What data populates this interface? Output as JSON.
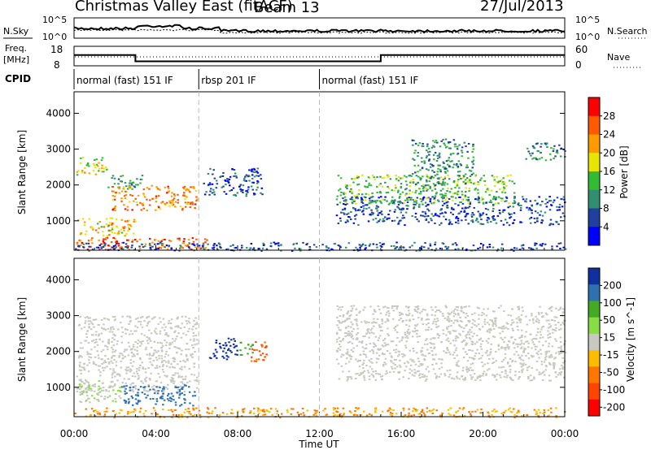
{
  "header": {
    "title": "Christmas Valley East (fitACF)",
    "beam": "Beam 13",
    "date": "27/Jul/2013"
  },
  "noise_panel": {
    "left_label": "N.Sky",
    "right_label": "N.Search",
    "left_ticks": [
      "10^5",
      "10^0"
    ],
    "right_ticks": [
      "10^5",
      "10^0"
    ]
  },
  "freq_panel": {
    "left_label_line1": "Freq.",
    "left_label_line2": "[MHz]",
    "right_label": "Nave",
    "left_ticks": [
      "18",
      "8"
    ],
    "right_ticks": [
      "60",
      "0"
    ]
  },
  "cpid": {
    "label": "CPID",
    "segments": [
      {
        "name": "normal (fast) 151 IF",
        "start_hour": 0,
        "end_hour": 6.1
      },
      {
        "name": "rbsp 201 IF",
        "start_hour": 6.1,
        "end_hour": 12.0
      },
      {
        "name": "normal (fast) 151 IF",
        "start_hour": 12.0,
        "end_hour": 24
      }
    ]
  },
  "power_panel": {
    "ylabel": "Slant Range [km]",
    "yticks": [
      "4000",
      "3000",
      "2000",
      "1000"
    ],
    "colorbar_label": "Power [dB]",
    "colorbar_ticks": [
      "28",
      "24",
      "20",
      "16",
      "12",
      "8",
      "4"
    ],
    "colors": [
      "#ff0000",
      "#ff5a00",
      "#ff9a00",
      "#e6e600",
      "#33bb33",
      "#2f8f6f",
      "#2040a0",
      "#0000ff"
    ]
  },
  "velocity_panel": {
    "ylabel": "Slant Range [km]",
    "yticks": [
      "4000",
      "3000",
      "2000",
      "1000"
    ],
    "colorbar_label": "Velocity [m s^-1]",
    "colorbar_ticks": [
      "200",
      "100",
      "50",
      "15",
      "-15",
      "-50",
      "-100",
      "-200"
    ],
    "colors": [
      "#1030a0",
      "#2f70b0",
      "#44aa22",
      "#88dd44",
      "#c8c8c0",
      "#ffbb00",
      "#ff7700",
      "#ff4400",
      "#ff0000"
    ]
  },
  "xaxis": {
    "label": "Time UT",
    "ticks": [
      "00:00",
      "04:00",
      "08:00",
      "12:00",
      "16:00",
      "20:00",
      "00:00"
    ]
  },
  "chart_data": {
    "type": "heatmap",
    "title": "Christmas Valley East (fitACF)",
    "xlabel": "Time UT",
    "ylabel": "Slant Range [km]",
    "xlim_hours": [
      0,
      24
    ],
    "ylim_km": [
      180,
      4600
    ],
    "frequency_mhz": [
      {
        "start_hour": 0,
        "end_hour": 3.0,
        "value": 13.5
      },
      {
        "start_hour": 3.0,
        "end_hour": 15.0,
        "value": 10.3
      },
      {
        "start_hour": 15.0,
        "end_hour": 24,
        "value": 13.5
      }
    ],
    "power_regions": [
      {
        "t0": 0.1,
        "t1": 1.6,
        "r0": 2300,
        "r1": 2800,
        "db": 18
      },
      {
        "t0": 1.6,
        "t1": 3.3,
        "r0": 1900,
        "r1": 2300,
        "db": 12
      },
      {
        "t0": 1.8,
        "t1": 6.0,
        "r0": 1300,
        "r1": 2000,
        "db": 24
      },
      {
        "t0": 0.1,
        "t1": 3.0,
        "r0": 600,
        "r1": 1100,
        "db": 20
      },
      {
        "t0": 0.1,
        "t1": 6.5,
        "r0": 200,
        "r1": 550,
        "db": 26
      },
      {
        "t0": 6.3,
        "t1": 9.2,
        "r0": 1700,
        "r1": 2500,
        "db": 6
      },
      {
        "t0": 12.8,
        "t1": 24,
        "r0": 900,
        "r1": 1700,
        "db": 6
      },
      {
        "t0": 12.8,
        "t1": 21.5,
        "r0": 1500,
        "r1": 2300,
        "db": 14
      },
      {
        "t0": 16.5,
        "t1": 19.5,
        "r0": 2000,
        "r1": 3300,
        "db": 10
      },
      {
        "t0": 22.0,
        "t1": 24,
        "r0": 2700,
        "r1": 3200,
        "db": 10
      },
      {
        "t0": 0,
        "t1": 24,
        "r0": 180,
        "r1": 420,
        "db": 6
      }
    ],
    "velocity_regions": [
      {
        "t0": 0.1,
        "t1": 6.0,
        "r0": 900,
        "r1": 3000,
        "v": 0
      },
      {
        "t0": 2.3,
        "t1": 5.9,
        "r0": 500,
        "r1": 1100,
        "v": 100
      },
      {
        "t0": 0.2,
        "t1": 2.4,
        "r0": 600,
        "r1": 1200,
        "v": 15
      },
      {
        "t0": 6.6,
        "t1": 8.0,
        "r0": 1800,
        "r1": 2400,
        "v": 200
      },
      {
        "t0": 8.0,
        "t1": 8.7,
        "r0": 1900,
        "r1": 2300,
        "v": 50
      },
      {
        "t0": 8.6,
        "t1": 9.4,
        "r0": 1700,
        "r1": 2300,
        "v": -100
      },
      {
        "t0": 12.8,
        "t1": 24,
        "r0": 1200,
        "r1": 3300,
        "v": 0
      },
      {
        "t0": 0,
        "t1": 24,
        "r0": 180,
        "r1": 450,
        "v": -50
      }
    ]
  }
}
